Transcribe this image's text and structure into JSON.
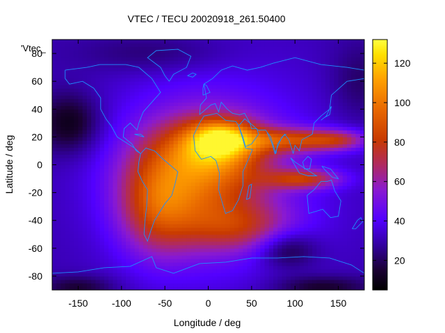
{
  "chart_data": {
    "type": "heatmap",
    "title": "VTEC / TECU 20020918_261.50400",
    "series_label": "'Vtec_",
    "xlabel": "Longitude / deg",
    "ylabel": "Latitude / deg",
    "xlim": [
      -180,
      180
    ],
    "ylim": [
      -90,
      90
    ],
    "x_ticks": [
      -150,
      -100,
      -50,
      0,
      50,
      100,
      150
    ],
    "y_ticks": [
      -80,
      -60,
      -40,
      -20,
      0,
      20,
      40,
      60,
      80
    ],
    "grid": false,
    "colorbar": {
      "range": [
        5,
        132
      ],
      "ticks": [
        20,
        40,
        60,
        80,
        100,
        120
      ],
      "colormap": "black-blue-purple-red-orange-yellow",
      "colors": [
        "#000000",
        "#1a0040",
        "#3300b3",
        "#4f00ff",
        "#8a19d8",
        "#c33800",
        "#e85a00",
        "#ff9a00",
        "#ffe000",
        "#ffff40"
      ]
    },
    "features": {
      "equatorial_anomaly_peak_tecu": 125,
      "peak_location": {
        "lon": 15,
        "lat": 20
      },
      "secondary_peak_tecu": 90,
      "secondary_location": {
        "lon": 95,
        "lat": 18
      },
      "southern_crest_tecu": 85,
      "southern_crest_location": {
        "lon": 110,
        "lat": -10
      },
      "background_min_tecu": 8
    },
    "coastline_color": "#1e90ff"
  }
}
